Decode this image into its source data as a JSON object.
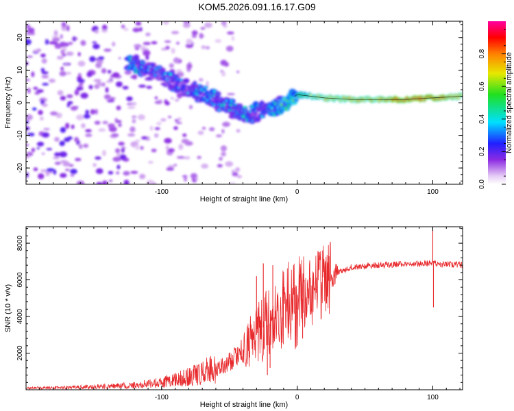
{
  "figure_title": "KOM5.2026.091.16.17.G09",
  "chart_data": [
    {
      "type": "heatmap",
      "title": "KOM5.2026.091.16.17.G09",
      "xlabel": "Height of straight line (km)",
      "ylabel": "Frequency (Hz)",
      "xlim": [
        -200,
        122
      ],
      "ylim": [
        -25,
        25
      ],
      "x_ticks": [
        -100,
        0,
        100
      ],
      "x_tick_labels": [
        "-100",
        "0",
        "100"
      ],
      "y_ticks": [
        -20,
        -10,
        0,
        10,
        20
      ],
      "y_tick_labels": [
        "-20",
        "-10",
        "0",
        "10",
        "20"
      ],
      "colorbar": {
        "label": "Normalized spectral amplitude",
        "range": [
          0,
          1
        ],
        "ticks": [
          0.0,
          0.2,
          0.4,
          0.6,
          0.8
        ],
        "tick_labels": [
          "0.0",
          "0.2",
          "0.4",
          "0.6",
          "0.8"
        ]
      },
      "ridge": {
        "x": [
          -120,
          -110,
          -100,
          -90,
          -80,
          -70,
          -60,
          -50,
          -40,
          -35,
          -30,
          -20,
          -10,
          -5,
          0,
          10,
          20,
          40,
          60,
          80,
          100,
          122
        ],
        "frequency": [
          12,
          10,
          8,
          6,
          4.5,
          3,
          1,
          -1.5,
          -3.5,
          -4,
          -3,
          -2,
          -0.5,
          1,
          2.5,
          2,
          1.5,
          1,
          1,
          1,
          1.5,
          2
        ],
        "amplitude": [
          0.45,
          0.35,
          0.35,
          0.35,
          0.35,
          0.4,
          0.4,
          0.45,
          0.45,
          0.4,
          0.4,
          0.45,
          0.5,
          0.55,
          0.6,
          0.65,
          0.7,
          0.75,
          0.8,
          0.95,
          0.9,
          0.75
        ]
      },
      "noise_region_x": [
        -200,
        -60
      ]
    },
    {
      "type": "line",
      "xlabel": "Height of straight line (km)",
      "ylabel": "SNR (10 * v/v)",
      "xlim": [
        -200,
        122
      ],
      "ylim": [
        0,
        8900
      ],
      "x_ticks": [
        -100,
        0,
        100
      ],
      "x_tick_labels": [
        "-100",
        "0",
        "100"
      ],
      "y_ticks": [
        2000,
        4000,
        6000,
        8000
      ],
      "y_tick_labels": [
        "2000",
        "4000",
        "6000",
        "8000"
      ],
      "series": [
        {
          "name": "SNR",
          "color": "#e8292c",
          "x": [
            -200,
            -180,
            -160,
            -140,
            -120,
            -100,
            -90,
            -80,
            -70,
            -60,
            -50,
            -40,
            -35,
            -30,
            -25,
            -20,
            -15,
            -10,
            -5,
            0,
            5,
            10,
            20,
            30,
            40,
            60,
            80,
            95,
            100,
            105,
            110,
            122
          ],
          "y": [
            80,
            100,
            130,
            170,
            230,
            380,
            500,
            650,
            850,
            1100,
            1500,
            2100,
            2600,
            3000,
            3400,
            3600,
            3800,
            4300,
            4600,
            4800,
            5000,
            5300,
            5900,
            6400,
            6700,
            6800,
            6850,
            6900,
            6950,
            6800,
            6850,
            6800
          ]
        }
      ],
      "spikes": [
        {
          "x": -30,
          "y": 6200
        },
        {
          "x": -25,
          "y": 6900
        },
        {
          "x": -20,
          "y": 1200
        },
        {
          "x": -22,
          "y": 800
        },
        {
          "x": -18,
          "y": 6800
        },
        {
          "x": 2,
          "y": 6300
        },
        {
          "x": 4,
          "y": 2800
        },
        {
          "x": 100,
          "y": 8900
        },
        {
          "x": 100.5,
          "y": 4500
        }
      ]
    }
  ]
}
